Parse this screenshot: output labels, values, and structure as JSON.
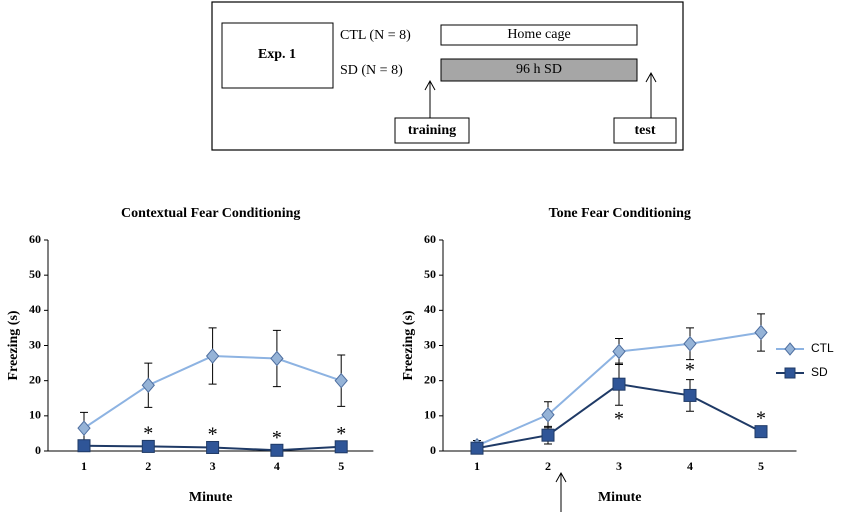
{
  "diagram": {
    "exp": "Exp. 1",
    "groups": [
      {
        "label": "CTL (N = 8)",
        "condition": "Home cage"
      },
      {
        "label": "SD (N = 8)",
        "condition": "96 h SD"
      }
    ],
    "training": "training",
    "test": "test"
  },
  "chart_data": [
    {
      "type": "line",
      "title": "Contextual Fear Conditioning",
      "x_label": "Minute",
      "y_label": "Freezing (s)",
      "categories": [
        "1",
        "2",
        "3",
        "4",
        "5"
      ],
      "ylim": [
        0,
        60
      ],
      "yticks": [
        0,
        10,
        20,
        30,
        40,
        50,
        60
      ],
      "series": [
        {
          "name": "CTL",
          "color": "#8db3e2",
          "marker": "diamond",
          "values": [
            6.5,
            18.7,
            27,
            26.3,
            20
          ],
          "errors": [
            4.5,
            6.3,
            8,
            8,
            7.3
          ]
        },
        {
          "name": "SD",
          "color": "#1f3a66",
          "marker": "square",
          "values": [
            1.5,
            1.3,
            1,
            0.2,
            1.2
          ],
          "errors": [
            1,
            1,
            1,
            0.8,
            1
          ]
        }
      ],
      "annotations": [
        null,
        "*",
        "*",
        "*",
        "*"
      ],
      "legend": false
    },
    {
      "type": "line",
      "title": "Tone Fear Conditioning",
      "x_label": "Minute",
      "y_label": "Freezing (s)",
      "categories": [
        "1",
        "2",
        "3",
        "4",
        "5"
      ],
      "ylim": [
        0,
        60
      ],
      "yticks": [
        0,
        10,
        20,
        30,
        40,
        50,
        60
      ],
      "series": [
        {
          "name": "CTL",
          "color": "#8db3e2",
          "marker": "diamond",
          "values": [
            1.5,
            10.3,
            28.3,
            30.5,
            33.7
          ],
          "errors": [
            1.5,
            3.7,
            3.7,
            4.5,
            5.3
          ]
        },
        {
          "name": "SD",
          "color": "#1f3a66",
          "marker": "square",
          "values": [
            0.8,
            4.5,
            19,
            15.8,
            5.5
          ],
          "errors": [
            1,
            2.5,
            6,
            4.5,
            1
          ]
        }
      ],
      "annotations": [
        null,
        null,
        "*",
        "*",
        "*"
      ],
      "legend": true
    }
  ]
}
